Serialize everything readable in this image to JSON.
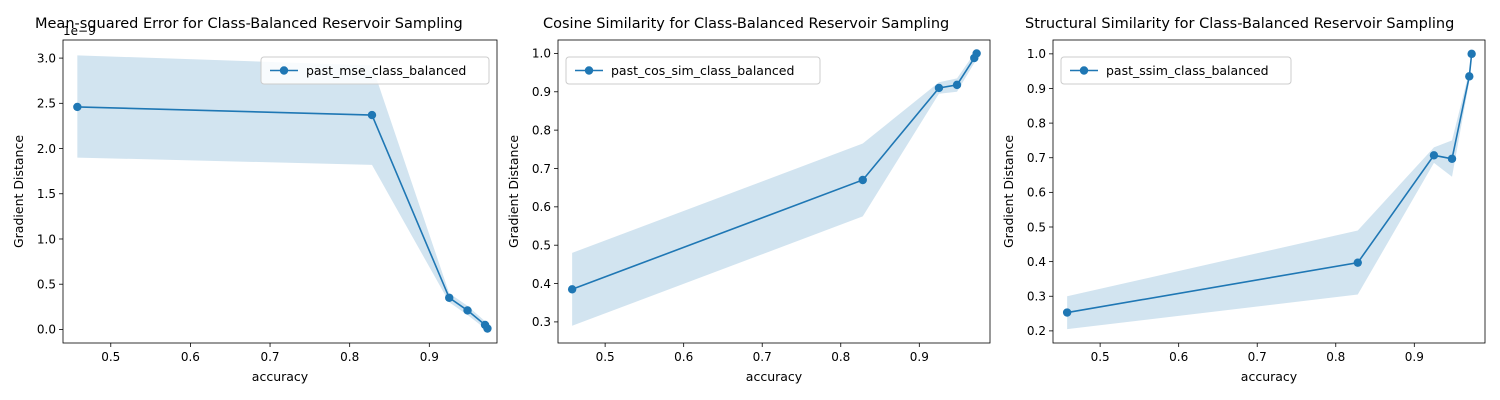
{
  "chart_data": [
    {
      "type": "line",
      "title": "Mean-squared Error for Class-Balanced Reservoir Sampling",
      "xlabel": "accuracy",
      "ylabel": "Gradient Distance",
      "offset_text": "1e−9",
      "legend_placement": "upper-right",
      "grid": false,
      "xlim": [
        0.44,
        0.985
      ],
      "ylim": [
        -0.15,
        3.2
      ],
      "x_ticks": [
        0.5,
        0.6,
        0.7,
        0.8,
        0.9
      ],
      "x_tick_labels": [
        "0.5",
        "0.6",
        "0.7",
        "0.8",
        "0.9"
      ],
      "y_ticks": [
        0.0,
        0.5,
        1.0,
        1.5,
        2.0,
        2.5,
        3.0
      ],
      "y_tick_labels": [
        "0.0",
        "0.5",
        "1.0",
        "1.5",
        "2.0",
        "2.5",
        "3.0"
      ],
      "series": [
        {
          "name": "past_mse_class_balanced",
          "color": "#1f77b4",
          "x": [
            0.458,
            0.828,
            0.925,
            0.948,
            0.97,
            0.973
          ],
          "y": [
            2.46,
            2.37,
            0.35,
            0.21,
            0.05,
            0.01
          ],
          "band_upper": [
            3.03,
            2.92,
            0.4,
            0.26,
            0.09,
            0.03
          ],
          "band_lower": [
            1.9,
            1.82,
            0.3,
            0.16,
            0.01,
            -0.01
          ]
        }
      ]
    },
    {
      "type": "line",
      "title": "Cosine Similarity for Class-Balanced Reservoir Sampling",
      "xlabel": "accuracy",
      "ylabel": "Gradient Distance",
      "legend_placement": "upper-left",
      "grid": false,
      "xlim": [
        0.44,
        0.99
      ],
      "ylim": [
        0.245,
        1.035
      ],
      "x_ticks": [
        0.5,
        0.6,
        0.7,
        0.8,
        0.9
      ],
      "x_tick_labels": [
        "0.5",
        "0.6",
        "0.7",
        "0.8",
        "0.9"
      ],
      "y_ticks": [
        0.3,
        0.4,
        0.5,
        0.6,
        0.7,
        0.8,
        0.9,
        1.0
      ],
      "y_tick_labels": [
        "0.3",
        "0.4",
        "0.5",
        "0.6",
        "0.7",
        "0.8",
        "0.9",
        "1.0"
      ],
      "series": [
        {
          "name": "past_cos_sim_class_balanced",
          "color": "#1f77b4",
          "x": [
            0.458,
            0.828,
            0.925,
            0.948,
            0.97,
            0.973
          ],
          "y": [
            0.385,
            0.67,
            0.91,
            0.918,
            0.988,
            1.0
          ],
          "band_upper": [
            0.48,
            0.765,
            0.925,
            0.935,
            1.0,
            1.002
          ],
          "band_lower": [
            0.29,
            0.575,
            0.895,
            0.9,
            0.975,
            0.998
          ]
        }
      ]
    },
    {
      "type": "line",
      "title": "Structural Similarity for Class-Balanced Reservoir Sampling",
      "xlabel": "accuracy",
      "ylabel": "Gradient Distance",
      "legend_placement": "upper-left",
      "grid": false,
      "xlim": [
        0.44,
        0.99
      ],
      "ylim": [
        0.165,
        1.04
      ],
      "x_ticks": [
        0.5,
        0.6,
        0.7,
        0.8,
        0.9
      ],
      "x_tick_labels": [
        "0.5",
        "0.6",
        "0.7",
        "0.8",
        "0.9"
      ],
      "y_ticks": [
        0.2,
        0.3,
        0.4,
        0.5,
        0.6,
        0.7,
        0.8,
        0.9,
        1.0
      ],
      "y_tick_labels": [
        "0.2",
        "0.3",
        "0.4",
        "0.5",
        "0.6",
        "0.7",
        "0.8",
        "0.9",
        "1.0"
      ],
      "series": [
        {
          "name": "past_ssim_class_balanced",
          "color": "#1f77b4",
          "x": [
            0.458,
            0.828,
            0.925,
            0.948,
            0.97,
            0.973
          ],
          "y": [
            0.253,
            0.397,
            0.707,
            0.697,
            0.935,
            1.0
          ],
          "band_upper": [
            0.3,
            0.49,
            0.73,
            0.75,
            0.95,
            1.0
          ],
          "band_lower": [
            0.205,
            0.305,
            0.685,
            0.645,
            0.92,
            1.0
          ]
        }
      ]
    }
  ]
}
